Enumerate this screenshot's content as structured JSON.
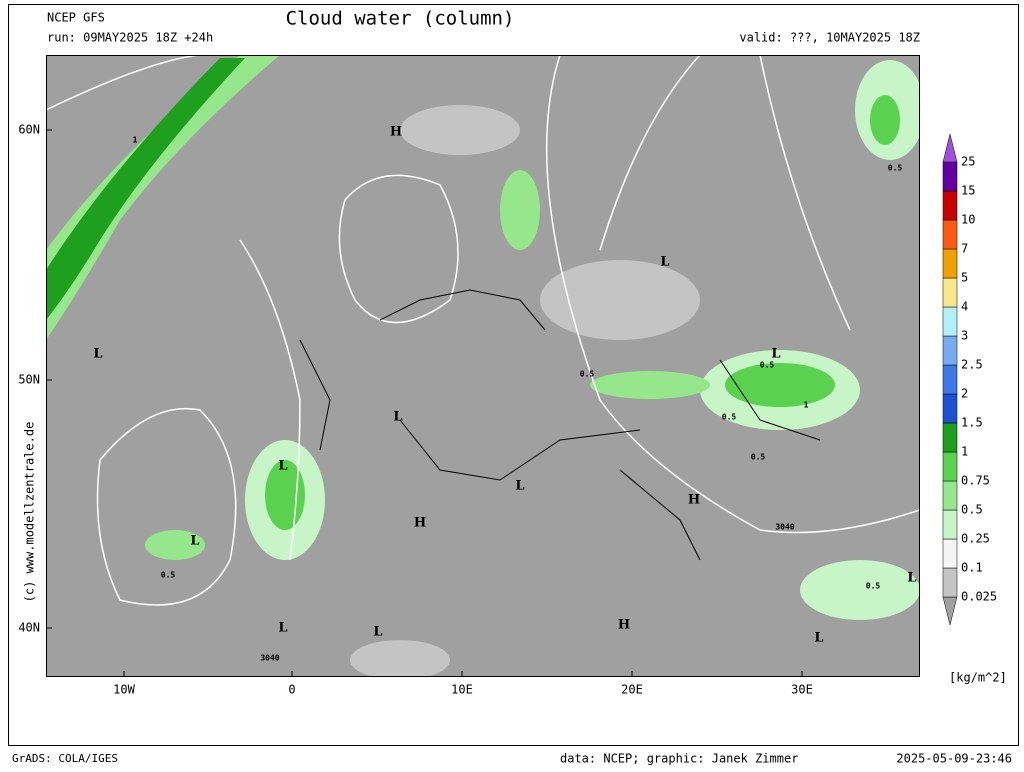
{
  "header": {
    "model": "NCEP GFS",
    "run": "run: 09MAY2025 18Z +24h",
    "title": "Cloud water (column)",
    "valid": "valid: ???, 10MAY2025 18Z"
  },
  "side_credit": "(c) www.modellzentrale.de",
  "map": {
    "lat_labels": [
      "60N",
      "50N",
      "40N"
    ],
    "lon_labels": [
      "10W",
      "0",
      "10E",
      "20E",
      "30E"
    ],
    "pressure_labels": [
      "H",
      "L",
      "L",
      "H",
      "L",
      "H",
      "L",
      "L",
      "L",
      "L",
      "L",
      "L",
      "H",
      "L",
      "L"
    ],
    "contour_labels": [
      "3040",
      "3040",
      "1",
      "0.5",
      "0.5",
      "0.5",
      "0.5",
      "1",
      "0.5",
      "0.5",
      "0.5"
    ]
  },
  "colorbar": {
    "labels": [
      0.025,
      0.1,
      0.25,
      0.5,
      0.75,
      1,
      1.5,
      2,
      2.5,
      3,
      4,
      5,
      7,
      10,
      15,
      25
    ],
    "colors": [
      "#a0a0a0",
      "#c4c4c4",
      "#f4f4f4",
      "#c8f5c8",
      "#96e68c",
      "#5ad250",
      "#1ea01e",
      "#1e50d2",
      "#3c78e6",
      "#78aaf0",
      "#b4f0fa",
      "#fae68c",
      "#f0a000",
      "#fa5a14",
      "#c80000",
      "#6400a0",
      "#a050dc"
    ],
    "unit": "[kg/m^2]"
  },
  "footer": {
    "left": "GrADS: COLA/IGES",
    "center": "data: NCEP; graphic: Janek Zimmer",
    "right": "2025-05-09-23:46"
  }
}
